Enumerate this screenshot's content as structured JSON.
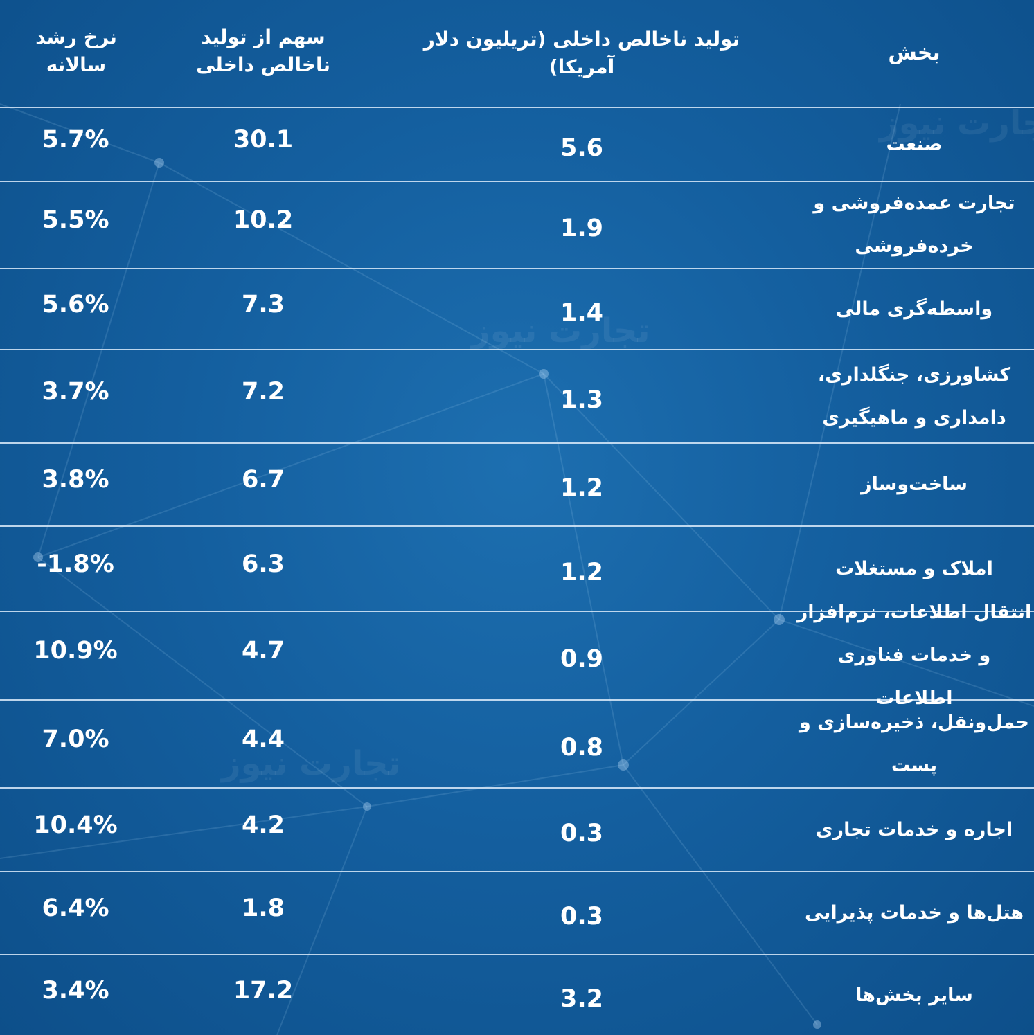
{
  "table": {
    "headers": {
      "sector": "بخش",
      "gdp": "تولید ناخالص داخلی (تریلیون دلار آمریکا)",
      "share": "سهم از تولید ناخالص داخلی",
      "growth": "نرخ رشد سالانه"
    },
    "rows": [
      {
        "sector": "صنعت",
        "gdp": "5.6",
        "share": "30.1",
        "growth": "5.7%"
      },
      {
        "sector": "تجارت عمده‌فروشی و خرده‌فروشی",
        "gdp": "1.9",
        "share": "10.2",
        "growth": "5.5%"
      },
      {
        "sector": "واسطه‌گری مالی",
        "gdp": "1.4",
        "share": "7.3",
        "growth": "5.6%"
      },
      {
        "sector": "کشاورزی، جنگلداری، دامداری و ماهیگیری",
        "gdp": "1.3",
        "share": "7.2",
        "growth": "3.7%"
      },
      {
        "sector": "ساخت‌وساز",
        "gdp": "1.2",
        "share": "6.7",
        "growth": "3.8%"
      },
      {
        "sector": "املاک و مستغلات",
        "gdp": "1.2",
        "share": "6.3",
        "growth": "-1.8%"
      },
      {
        "sector": "انتقال اطلاعات، نرم‌افزار و خدمات فناوری اطلاعات",
        "gdp": "0.9",
        "share": "4.7",
        "growth": "10.9%"
      },
      {
        "sector": "حمل‌ونقل، ذخیره‌سازی و پست",
        "gdp": "0.8",
        "share": "4.4",
        "growth": "7.0%"
      },
      {
        "sector": "اجاره و خدمات تجاری",
        "gdp": "0.3",
        "share": "4.2",
        "growth": "10.4%"
      },
      {
        "sector": "هتل‌ها و خدمات پذیرایی",
        "gdp": "0.3",
        "share": "1.8",
        "growth": "6.4%"
      },
      {
        "sector": "سایر بخش‌ها",
        "gdp": "3.2",
        "share": "17.2",
        "growth": "3.4%"
      }
    ]
  },
  "watermark": "تجارت نیوز",
  "colors": {
    "background": "#145f9f",
    "divider": "#dcebfa",
    "text": "#ffffff"
  }
}
